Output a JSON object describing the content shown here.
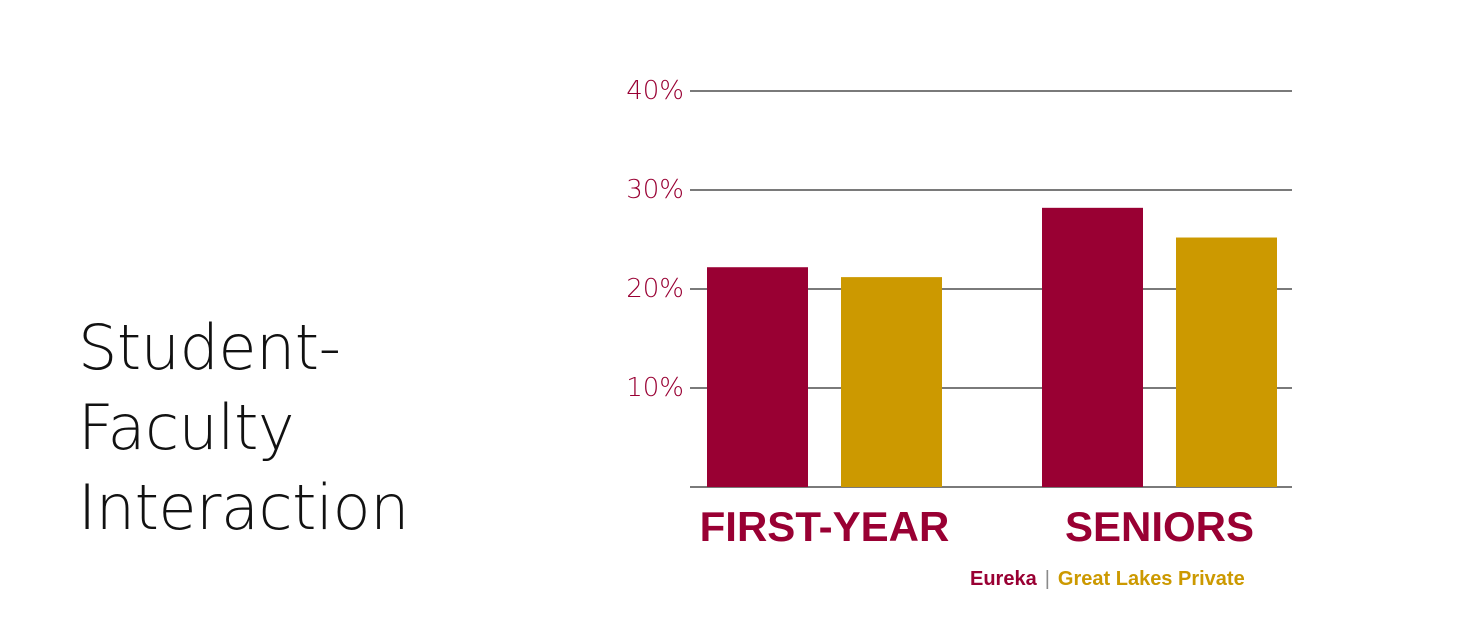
{
  "title": [
    "Student-",
    "Faculty",
    "Interaction"
  ],
  "colors": {
    "eureka": "#990033",
    "glp": "#CC9900",
    "axis": "#7a7a7a",
    "tick": "#990033"
  },
  "chart_data": {
    "type": "bar",
    "categories": [
      "FIRST-YEAR",
      "SENIORS"
    ],
    "series": [
      {
        "name": "Eureka",
        "values": [
          22.2,
          28.2
        ]
      },
      {
        "name": "Great Lakes Private",
        "values": [
          21.2,
          25.2
        ]
      }
    ],
    "ylim": [
      0,
      40
    ],
    "yticks": [
      10,
      20,
      30,
      40
    ],
    "ytick_labels": [
      "10%",
      "20%",
      "30%",
      "40%"
    ],
    "grid": true,
    "legend": "bottom-right"
  },
  "legend": {
    "separator": "|"
  }
}
